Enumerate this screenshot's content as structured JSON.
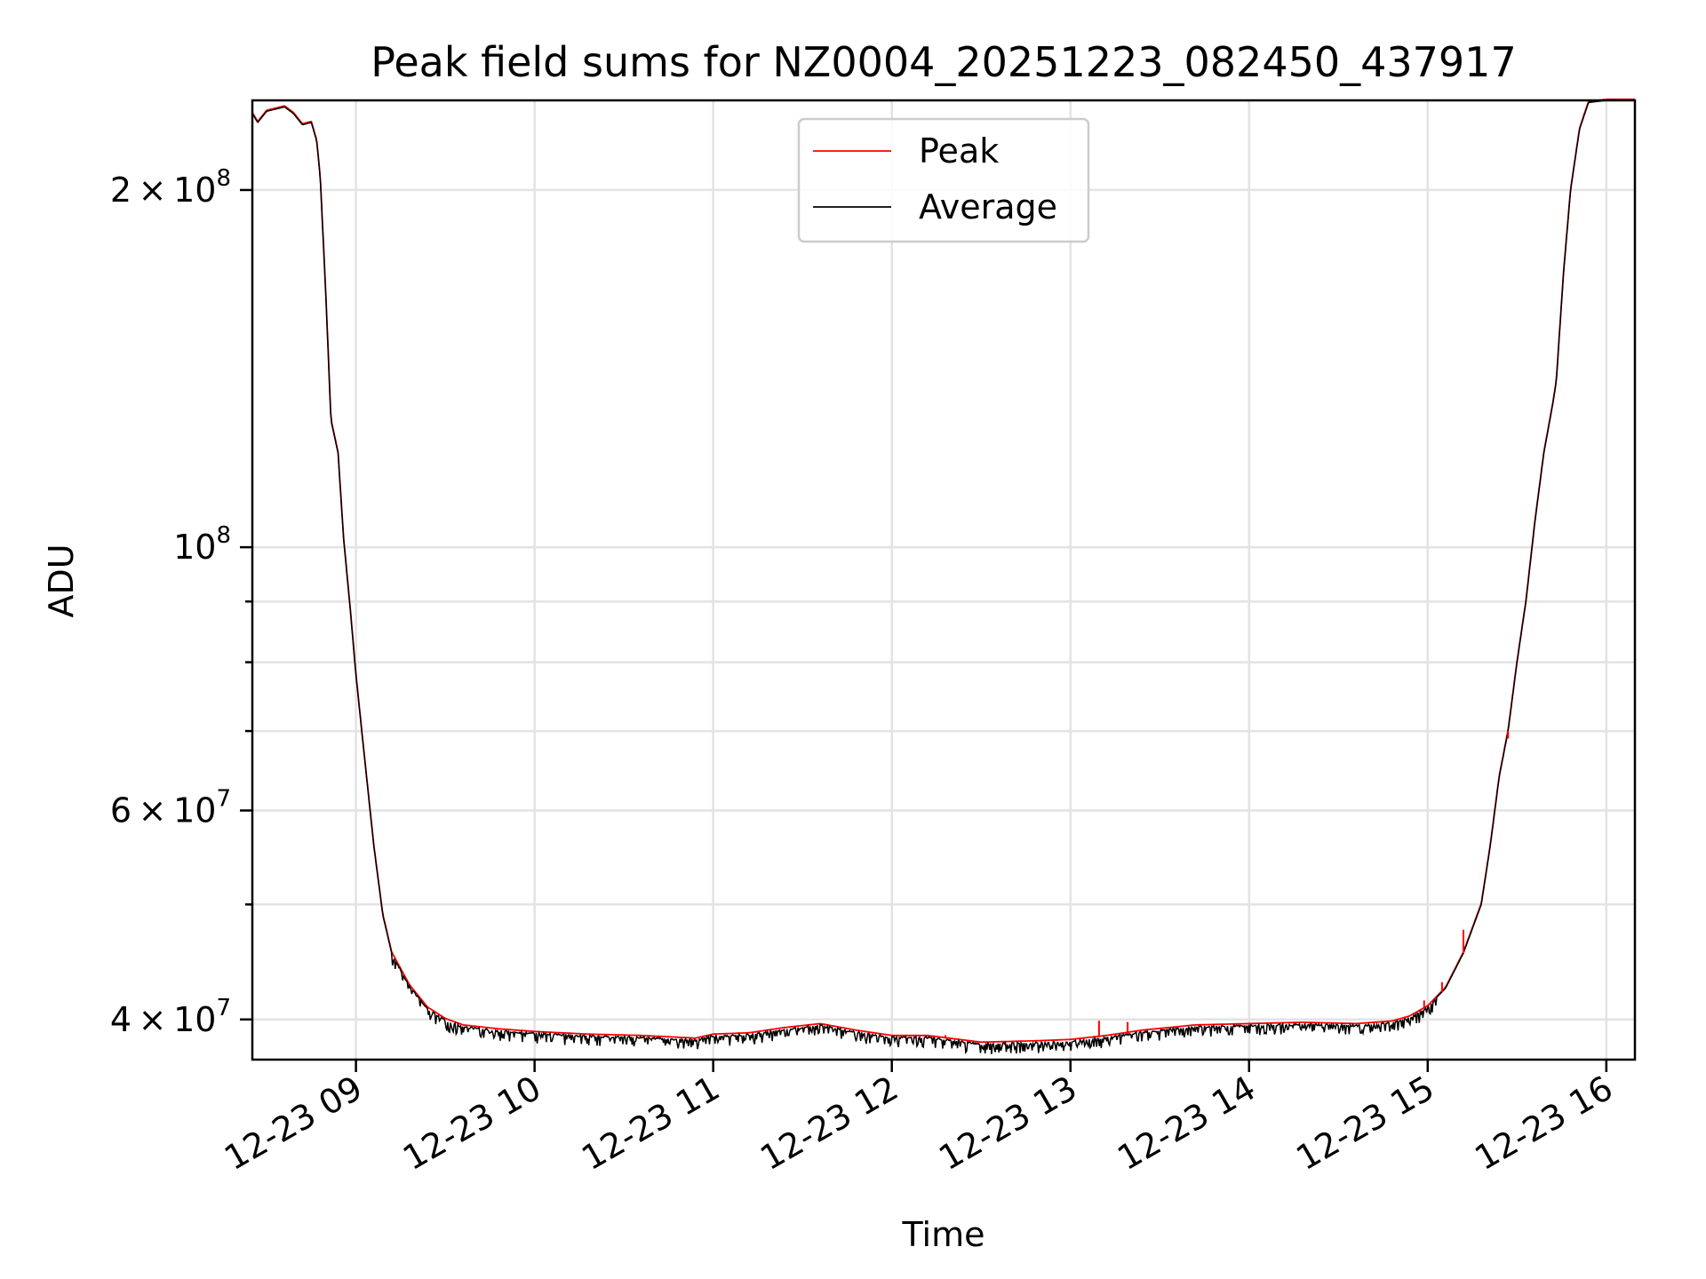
{
  "chart_data": {
    "type": "line",
    "title": "Peak field sums for NZ0004_20251223_082450_437917",
    "xlabel": "Time",
    "ylabel": "ADU",
    "yscale": "log",
    "ylim": [
      37000000,
      238000000
    ],
    "xlim_hours": [
      8.42,
      16.16
    ],
    "grid": true,
    "legend_position": "top-center",
    "x_ticks": [
      {
        "hour": 9,
        "label": "12-23 09"
      },
      {
        "hour": 10,
        "label": "12-23 10"
      },
      {
        "hour": 11,
        "label": "12-23 11"
      },
      {
        "hour": 12,
        "label": "12-23 12"
      },
      {
        "hour": 13,
        "label": "12-23 13"
      },
      {
        "hour": 14,
        "label": "12-23 14"
      },
      {
        "hour": 15,
        "label": "12-23 15"
      },
      {
        "hour": 16,
        "label": "12-23 16"
      }
    ],
    "y_major_ticks": [
      {
        "value": 40000000,
        "mantissa": "4",
        "exp": "7"
      },
      {
        "value": 60000000,
        "mantissa": "6",
        "exp": "7"
      },
      {
        "value": 100000000,
        "mantissa": "",
        "exp": "8"
      },
      {
        "value": 200000000,
        "mantissa": "2",
        "exp": "8"
      }
    ],
    "y_minor_ticks": [
      50000000,
      70000000,
      80000000,
      90000000
    ],
    "series": [
      {
        "name": "Peak",
        "color": "#ff0000",
        "spikes": [
          {
            "hour": 12.3,
            "value": 38800000
          },
          {
            "hour": 12.92,
            "value": 38500000
          },
          {
            "hour": 13.16,
            "value": 39900000
          },
          {
            "hour": 13.32,
            "value": 39800000
          },
          {
            "hour": 14.98,
            "value": 41500000
          },
          {
            "hour": 15.08,
            "value": 43000000
          },
          {
            "hour": 15.2,
            "value": 47600000
          },
          {
            "hour": 15.45,
            "value": 69000000
          }
        ]
      },
      {
        "name": "Average",
        "color": "#000000",
        "points": [
          [
            8.42,
            232000000
          ],
          [
            8.45,
            228000000
          ],
          [
            8.5,
            233000000
          ],
          [
            8.55,
            234000000
          ],
          [
            8.6,
            235000000
          ],
          [
            8.65,
            232000000
          ],
          [
            8.7,
            227000000
          ],
          [
            8.75,
            228000000
          ],
          [
            8.78,
            220000000
          ],
          [
            8.8,
            205000000
          ],
          [
            8.83,
            165000000
          ],
          [
            8.86,
            128000000
          ],
          [
            8.9,
            120000000
          ],
          [
            8.93,
            102000000
          ],
          [
            8.97,
            88000000
          ],
          [
            9.0,
            78000000
          ],
          [
            9.05,
            66000000
          ],
          [
            9.1,
            56000000
          ],
          [
            9.15,
            49000000
          ],
          [
            9.2,
            45500000
          ],
          [
            9.3,
            42700000
          ],
          [
            9.4,
            40900000
          ],
          [
            9.5,
            40000000
          ],
          [
            9.6,
            39500000
          ],
          [
            9.8,
            39200000
          ],
          [
            10.0,
            39000000
          ],
          [
            10.3,
            38800000
          ],
          [
            10.6,
            38700000
          ],
          [
            10.9,
            38500000
          ],
          [
            11.0,
            38800000
          ],
          [
            11.2,
            38900000
          ],
          [
            11.4,
            39300000
          ],
          [
            11.6,
            39600000
          ],
          [
            11.8,
            39100000
          ],
          [
            12.0,
            38700000
          ],
          [
            12.2,
            38700000
          ],
          [
            12.5,
            38200000
          ],
          [
            12.8,
            38300000
          ],
          [
            13.0,
            38400000
          ],
          [
            13.2,
            38700000
          ],
          [
            13.4,
            39100000
          ],
          [
            13.7,
            39500000
          ],
          [
            14.0,
            39600000
          ],
          [
            14.3,
            39700000
          ],
          [
            14.6,
            39600000
          ],
          [
            14.8,
            39800000
          ],
          [
            14.9,
            40200000
          ],
          [
            15.0,
            41000000
          ],
          [
            15.1,
            42500000
          ],
          [
            15.2,
            45500000
          ],
          [
            15.3,
            50000000
          ],
          [
            15.35,
            56000000
          ],
          [
            15.4,
            64000000
          ],
          [
            15.45,
            70000000
          ],
          [
            15.5,
            80000000
          ],
          [
            15.55,
            90000000
          ],
          [
            15.6,
            105000000
          ],
          [
            15.65,
            120000000
          ],
          [
            15.7,
            132000000
          ],
          [
            15.72,
            138000000
          ],
          [
            15.76,
            170000000
          ],
          [
            15.8,
            200000000
          ],
          [
            15.85,
            225000000
          ],
          [
            15.9,
            237000000
          ],
          [
            16.0,
            238000000
          ],
          [
            16.16,
            238000000
          ]
        ]
      }
    ]
  }
}
